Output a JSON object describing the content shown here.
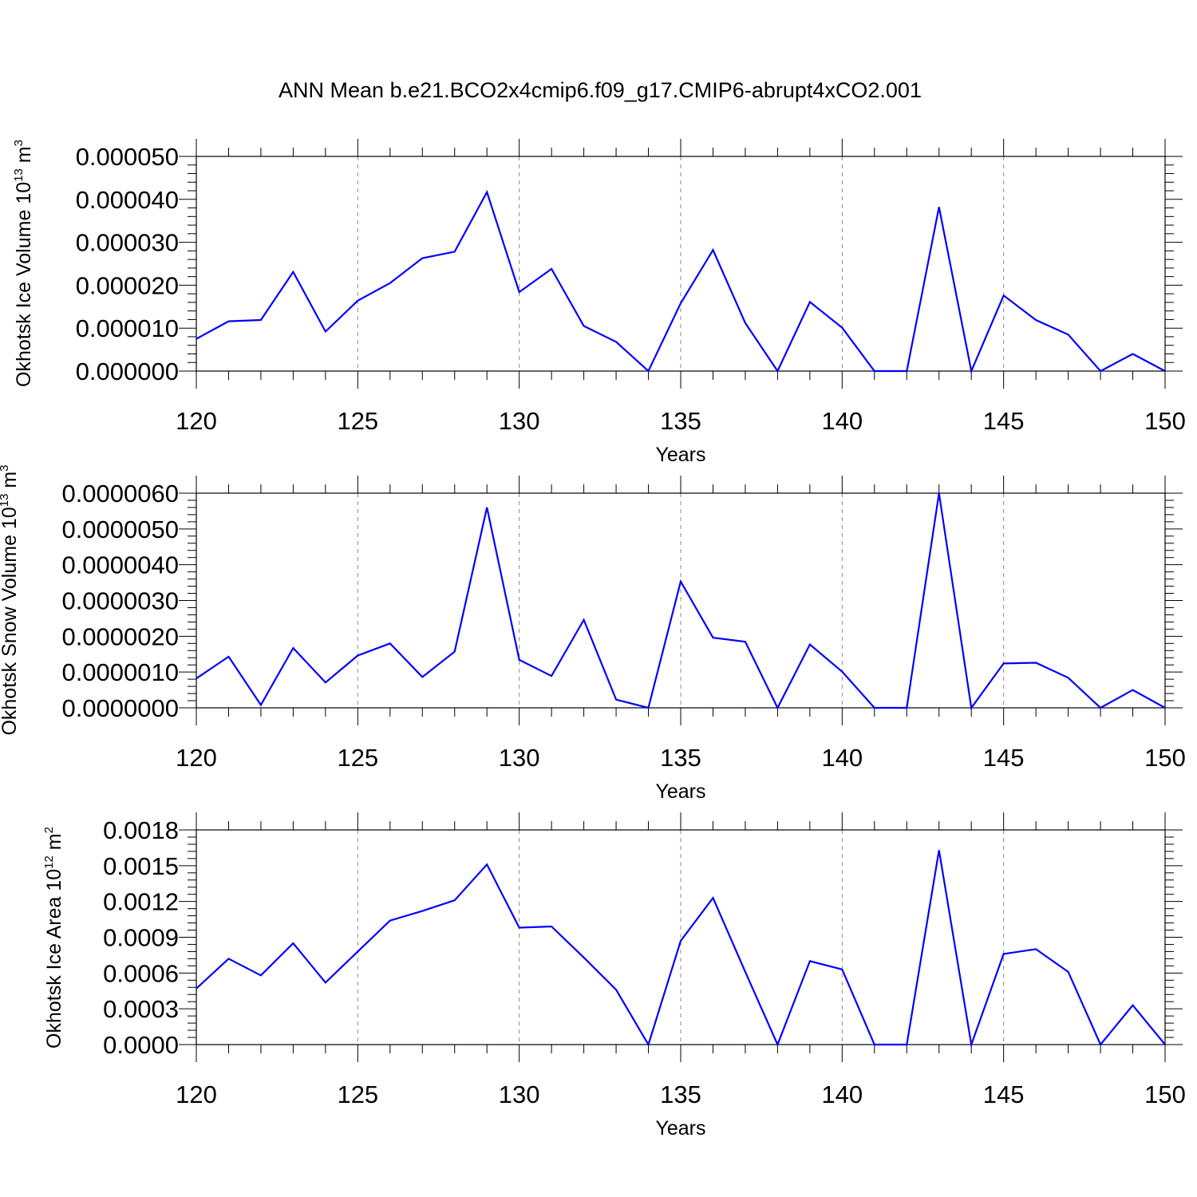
{
  "title": "ANN Mean b.e21.BCO2x4cmip6.f09_g17.CMIP6-abrupt4xCO2.001",
  "line_color": "#0000ff",
  "chart_data": [
    {
      "type": "line",
      "ylabel": "Okhotsk Ice Volume 10",
      "ylabel_exp": "13",
      "ylabel_unit": "m",
      "ylabel_unit_exp": "3",
      "xlabel": "Years",
      "xlim": [
        120,
        150
      ],
      "ylim": [
        0,
        5e-05
      ],
      "grid": "dashed vertical lines at major x ticks",
      "xticks": [
        "120",
        "125",
        "130",
        "135",
        "140",
        "145",
        "150"
      ],
      "yticks": [
        "0.000000",
        "0.000010",
        "0.000020",
        "0.000030",
        "0.000040",
        "0.000050"
      ],
      "x": [
        120,
        121,
        122,
        123,
        124,
        125,
        126,
        127,
        128,
        129,
        130,
        131,
        132,
        133,
        134,
        135,
        136,
        137,
        138,
        139,
        140,
        141,
        142,
        143,
        144,
        145,
        146,
        147,
        148,
        149,
        150
      ],
      "series": [
        {
          "values": [
            7.5e-06,
            1.16e-05,
            1.19e-05,
            2.31e-05,
            9.2e-06,
            1.64e-05,
            2.05e-05,
            2.63e-05,
            2.78e-05,
            4.17e-05,
            1.84e-05,
            2.38e-05,
            1.05e-05,
            6.8e-06,
            0.0,
            1.58e-05,
            2.82e-05,
            1.12e-05,
            0.0,
            1.61e-05,
            1.01e-05,
            0.0,
            0.0,
            3.82e-05,
            0.0,
            1.76e-05,
            1.19e-05,
            8.5e-06,
            0.0,
            4e-06,
            0.0
          ]
        }
      ]
    },
    {
      "type": "line",
      "ylabel": "Okhotsk Snow Volume 10",
      "ylabel_exp": "13",
      "ylabel_unit": "m",
      "ylabel_unit_exp": "3",
      "xlabel": "Years",
      "xlim": [
        120,
        150
      ],
      "ylim": [
        0,
        6e-06
      ],
      "grid": "dashed vertical lines at major x ticks",
      "xticks": [
        "120",
        "125",
        "130",
        "135",
        "140",
        "145",
        "150"
      ],
      "yticks": [
        "0.0000000",
        "0.0000010",
        "0.0000020",
        "0.0000030",
        "0.0000040",
        "0.0000050",
        "0.0000060"
      ],
      "x": [
        120,
        121,
        122,
        123,
        124,
        125,
        126,
        127,
        128,
        129,
        130,
        131,
        132,
        133,
        134,
        135,
        136,
        137,
        138,
        139,
        140,
        141,
        142,
        143,
        144,
        145,
        146,
        147,
        148,
        149,
        150
      ],
      "series": [
        {
          "values": [
            8.2e-07,
            1.43e-06,
            8e-08,
            1.67e-06,
            7.1e-07,
            1.46e-06,
            1.8e-06,
            8.6e-07,
            1.57e-06,
            5.6e-06,
            1.34e-06,
            8.9e-07,
            2.46e-06,
            2.3e-07,
            0.0,
            3.53e-06,
            1.96e-06,
            1.85e-06,
            0.0,
            1.77e-06,
            1.01e-06,
            0.0,
            0.0,
            6e-06,
            0.0,
            1.24e-06,
            1.26e-06,
            8.4e-07,
            0.0,
            5e-07,
            0.0
          ]
        }
      ]
    },
    {
      "type": "line",
      "ylabel": "Okhotsk Ice Area 10",
      "ylabel_exp": "12",
      "ylabel_unit": "m",
      "ylabel_unit_exp": "2",
      "xlabel": "Years",
      "xlim": [
        120,
        150
      ],
      "ylim": [
        0,
        0.0018
      ],
      "grid": "dashed vertical lines at major x ticks",
      "xticks": [
        "120",
        "125",
        "130",
        "135",
        "140",
        "145",
        "150"
      ],
      "yticks": [
        "0.0000",
        "0.0003",
        "0.0006",
        "0.0009",
        "0.0012",
        "0.0015",
        "0.0018"
      ],
      "x": [
        120,
        121,
        122,
        123,
        124,
        125,
        126,
        127,
        128,
        129,
        130,
        131,
        132,
        133,
        134,
        135,
        136,
        137,
        138,
        139,
        140,
        141,
        142,
        143,
        144,
        145,
        146,
        147,
        148,
        149,
        150
      ],
      "series": [
        {
          "values": [
            0.00047,
            0.00072,
            0.00058,
            0.00085,
            0.00052,
            0.00078,
            0.00104,
            0.00112,
            0.00121,
            0.00151,
            0.00098,
            0.00099,
            0.00073,
            0.00046,
            0.0,
            0.00087,
            0.00123,
            0.00061,
            0.0,
            0.0007,
            0.00063,
            0.0,
            0.0,
            0.00163,
            0.0,
            0.00076,
            0.0008,
            0.00061,
            0.0,
            0.00033,
            0.0
          ]
        }
      ]
    }
  ]
}
